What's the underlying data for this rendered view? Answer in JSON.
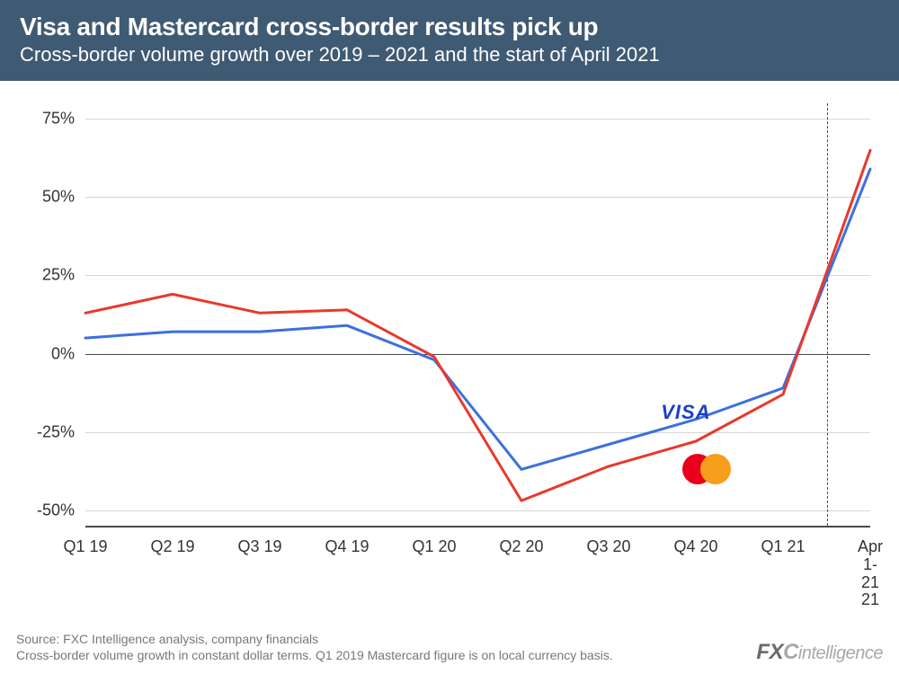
{
  "header": {
    "title": "Visa and Mastercard cross-border results pick up",
    "subtitle": "Cross-border volume growth over 2019 – 2021 and the start of April 2021"
  },
  "chart": {
    "type": "line",
    "background_color": "#ffffff",
    "grid_color": "#d6d6d6",
    "axis_color": "#4a4a4a",
    "ylim": [
      -55,
      80
    ],
    "ytick_values": [
      -50,
      -25,
      0,
      25,
      50,
      75
    ],
    "ytick_labels": [
      "-50%",
      "-25%",
      "0%",
      "25%",
      "50%",
      "75%"
    ],
    "categories": [
      "Q1 19",
      "Q2 19",
      "Q3 19",
      "Q4 19",
      "Q1 20",
      "Q2 20",
      "Q3 20",
      "Q4 20",
      "Q1 21",
      "Apr 1-21\n21"
    ],
    "divider_between_index": 8,
    "series": [
      {
        "name": "Visa",
        "color": "#3d6fe0",
        "line_width": 3,
        "values": [
          5,
          7,
          7,
          9,
          -2,
          -37,
          -29,
          -21,
          -11,
          59
        ]
      },
      {
        "name": "Mastercard",
        "color": "#e8392c",
        "line_width": 3,
        "values": [
          13,
          19,
          13,
          14,
          -1,
          -47,
          -36,
          -28,
          -13,
          65
        ]
      }
    ],
    "legend": {
      "visa_label": "VISA",
      "visa_color": "#1a3fc7",
      "mc_left_color": "#eb001b",
      "mc_right_color": "#f79e1b",
      "mc_overlap_color": "#ff5f00"
    },
    "label_fontsize": 18,
    "title_fontsize": 28
  },
  "footer": {
    "source_line1": "Source: FXC Intelligence analysis, company financials",
    "source_line2": "Cross-border volume growth in constant dollar terms. Q1 2019 Mastercard figure is on local currency basis.",
    "brand_fx": "FX",
    "brand_c": "C",
    "brand_rest": "intelligence"
  }
}
